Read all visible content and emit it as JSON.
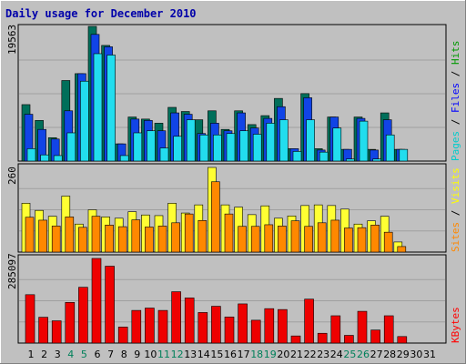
{
  "chart_data": {
    "type": "bar",
    "title": "Daily usage for December 2010",
    "x": [
      "1",
      "2",
      "3",
      "4",
      "5",
      "6",
      "7",
      "8",
      "9",
      "10",
      "11",
      "12",
      "13",
      "14",
      "15",
      "16",
      "17",
      "18",
      "19",
      "20",
      "21",
      "22",
      "23",
      "24",
      "25",
      "26",
      "27",
      "28",
      "29",
      "30",
      "31"
    ],
    "weekend_days": [
      "4",
      "5",
      "11",
      "12",
      "18",
      "19",
      "25",
      "26"
    ],
    "panels": [
      {
        "id": "hits_files_pages",
        "ymax_label": "19563",
        "ymax": 19563,
        "side_labels": [
          {
            "text": "Pages",
            "color": "#00cccc"
          },
          {
            "text": "Files",
            "color": "#0000ff"
          },
          {
            "text": "Hits",
            "color": "#009900"
          }
        ],
        "series": [
          {
            "name": "Hits",
            "color": "#006f5a",
            "values": [
              8200,
              5900,
              3400,
              11700,
              12700,
              19563,
              16800,
              2500,
              6400,
              6100,
              5500,
              7800,
              7200,
              6000,
              7300,
              4600,
              7300,
              5300,
              6600,
              9100,
              1800,
              9800,
              1800,
              6400,
              1700,
              6400,
              1700,
              7000,
              1700,
              0,
              0
            ]
          },
          {
            "name": "Files",
            "color": "#1144e6",
            "values": [
              6800,
              4600,
              3200,
              7300,
              12700,
              18400,
              16600,
              2500,
              6100,
              5900,
              4400,
              7000,
              6800,
              4000,
              5500,
              4400,
              7000,
              4800,
              6200,
              7900,
              1800,
              9200,
              1600,
              6400,
              1700,
              6200,
              1600,
              6000,
              1700,
              0,
              0
            ]
          },
          {
            "name": "Pages",
            "color": "#22ddee",
            "values": [
              1800,
              900,
              800,
              4100,
              11600,
              15600,
              15400,
              800,
              4100,
              4400,
              1900,
              3600,
              6000,
              3800,
              3800,
              4000,
              4400,
              3900,
              5500,
              6000,
              1400,
              6000,
              1300,
              4800,
              300,
              5800,
              300,
              3800,
              1700,
              0,
              0
            ]
          }
        ]
      },
      {
        "id": "visits_sites",
        "ymax_label": "260",
        "ymax": 260,
        "side_labels": [
          {
            "text": "Sites",
            "color": "#ff8800"
          },
          {
            "text": "Visits",
            "color": "#ffff00"
          }
        ],
        "series": [
          {
            "name": "Visits",
            "color": "#ffff33",
            "values": [
              150,
              128,
              110,
              172,
              86,
              130,
              108,
              104,
              124,
              114,
              112,
              150,
              120,
              145,
              260,
              145,
              138,
              115,
              142,
              104,
              111,
              143,
              145,
              143,
              132,
              86,
              96,
              110,
              31,
              0,
              0
            ]
          },
          {
            "name": "Sites",
            "color": "#ff8800",
            "values": [
              107,
              98,
              80,
              108,
              76,
              110,
              83,
              78,
              99,
              77,
              80,
              90,
              117,
              97,
              216,
              117,
              79,
              79,
              84,
              80,
              96,
              79,
              90,
              98,
              74,
              75,
              83,
              61,
              17,
              0,
              0
            ]
          }
        ]
      },
      {
        "id": "kbytes",
        "ymax_label": "285097",
        "ymax": 285097,
        "side_labels": [
          {
            "text": "KBytes",
            "color": "#ff0000"
          }
        ],
        "series": [
          {
            "name": "KBytes",
            "color": "#ee0000",
            "values": [
              163000,
              87000,
              75000,
              137000,
              188000,
              285097,
              259000,
              54000,
              110000,
              118000,
              110000,
              173000,
              152000,
              103000,
              124000,
              88000,
              132000,
              77000,
              116000,
              113000,
              24000,
              148000,
              33000,
              92000,
              26000,
              107000,
              44000,
              92000,
              22000,
              0,
              0
            ]
          }
        ]
      }
    ]
  }
}
